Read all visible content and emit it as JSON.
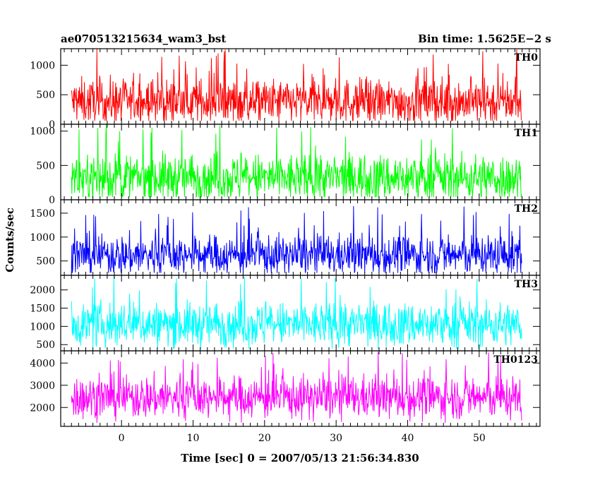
{
  "chart_data": {
    "type": "line",
    "title": "ae070513215634_wam3_bst",
    "bin_time_label": "Bin time: 1.5625E−2 s",
    "xlabel": "Time [sec] 0 = 2007/05/13 21:56:34.830",
    "ylabel": "Counts/sec",
    "xlim": [
      -8.5,
      58.5
    ],
    "x_range": [
      -7.0,
      56.0
    ],
    "x_step": 0.015625,
    "x_ticks": [
      0,
      10,
      20,
      30,
      40,
      50
    ],
    "x_tick_labels": [
      "0",
      "10",
      "20",
      "30",
      "40",
      "50"
    ],
    "panels": [
      {
        "name": "TH0",
        "color": "#ff0000",
        "ylim": [
          0,
          1280
        ],
        "y_ticks": [
          0,
          500,
          1000
        ],
        "y_tick_labels": [
          "0",
          "500",
          "1000"
        ],
        "mean": 380,
        "low": 60,
        "high": 1280,
        "spread": 190
      },
      {
        "name": "TH1",
        "color": "#00ff00",
        "ylim": [
          0,
          1100
        ],
        "y_ticks": [
          0,
          500,
          1000
        ],
        "y_tick_labels": [
          "0",
          "500",
          "1000"
        ],
        "mean": 320,
        "low": 40,
        "high": 1100,
        "spread": 170
      },
      {
        "name": "TH2",
        "color": "#0000ff",
        "ylim": [
          200,
          1780
        ],
        "y_ticks": [
          500,
          1000,
          1500
        ],
        "y_tick_labels": [
          "500",
          "1000",
          "1500"
        ],
        "mean": 620,
        "low": 250,
        "high": 1650,
        "spread": 210
      },
      {
        "name": "TH3",
        "color": "#00ffff",
        "ylim": [
          330,
          2400
        ],
        "y_ticks": [
          500,
          1000,
          1500,
          2000
        ],
        "y_tick_labels": [
          "500",
          "1000",
          "1500",
          "2000"
        ],
        "mean": 1050,
        "low": 380,
        "high": 2400,
        "spread": 300
      },
      {
        "name": "TH0123",
        "color": "#ff00ff",
        "ylim": [
          1150,
          4550
        ],
        "y_ticks": [
          2000,
          3000,
          4000
        ],
        "y_tick_labels": [
          "2000",
          "3000",
          "4000"
        ],
        "mean": 2450,
        "low": 1300,
        "high": 4500,
        "spread": 480
      }
    ]
  }
}
